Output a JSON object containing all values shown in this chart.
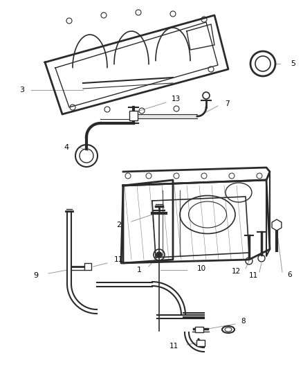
{
  "background_color": "#ffffff",
  "figsize": [
    4.38,
    5.33
  ],
  "dpi": 100,
  "line_color": "#2a2a2a",
  "light_line_color": "#555555",
  "annotation_line_color": "#999999",
  "label_color": "#000000",
  "label_fontsize": 7.5
}
